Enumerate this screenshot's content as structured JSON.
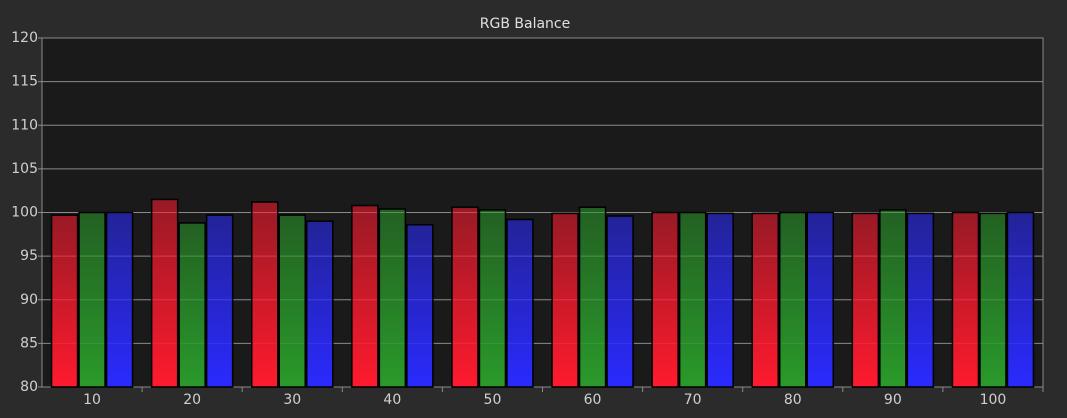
{
  "chart_data": {
    "type": "bar",
    "title": "RGB Balance",
    "categories": [
      "10",
      "20",
      "30",
      "40",
      "50",
      "60",
      "70",
      "80",
      "90",
      "100"
    ],
    "series": [
      {
        "color": "#ff1a2e",
        "values": [
          99.7,
          101.5,
          101.2,
          100.8,
          100.6,
          99.9,
          100.0,
          99.9,
          99.9,
          100.0
        ]
      },
      {
        "color": "#2a9a2a",
        "values": [
          100.0,
          98.8,
          99.7,
          100.4,
          100.3,
          100.6,
          100.0,
          100.0,
          100.3,
          99.9
        ]
      },
      {
        "color": "#2a2aff",
        "values": [
          100.0,
          99.7,
          99.0,
          98.6,
          99.2,
          99.6,
          99.9,
          100.0,
          99.9,
          100.0
        ]
      }
    ],
    "ylim": [
      80,
      120
    ],
    "yticks": [
      80,
      85,
      90,
      95,
      100,
      105,
      110,
      115,
      120
    ],
    "grid": true
  }
}
